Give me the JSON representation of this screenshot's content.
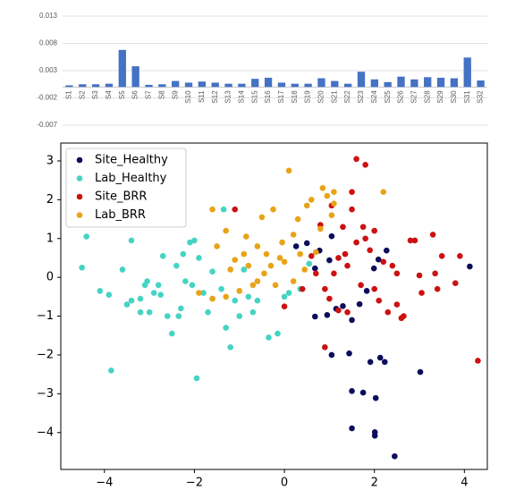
{
  "chart_data": [
    {
      "type": "bar",
      "color": "#4472c4",
      "grid": true,
      "categories": [
        "S1",
        "S2",
        "S3",
        "S4",
        "S5",
        "S6",
        "S7",
        "S8",
        "S9",
        "S10",
        "S11",
        "S12",
        "S13",
        "S14",
        "S15",
        "S16",
        "S17",
        "S18",
        "S19",
        "S20",
        "S21",
        "S22",
        "S23",
        "S24",
        "S25",
        "S26",
        "S27",
        "S28",
        "S29",
        "S30",
        "S31",
        "S32"
      ],
      "values": [
        0.0003,
        0.0005,
        0.0005,
        0.0006,
        0.0068,
        0.0038,
        0.0004,
        0.0005,
        0.0011,
        0.0008,
        0.001,
        0.0008,
        0.0006,
        0.0006,
        0.0015,
        0.0017,
        0.0008,
        0.0006,
        0.0006,
        0.0016,
        0.0011,
        0.0006,
        0.0028,
        0.0014,
        0.0009,
        0.0019,
        0.0014,
        0.0018,
        0.0017,
        0.0016,
        0.0054,
        0.0012
      ],
      "ylim": [
        -0.007,
        0.013
      ],
      "yticks": [
        -0.007,
        -0.002,
        0.003,
        0.008,
        0.013
      ]
    },
    {
      "type": "scatter",
      "legend": "upper left",
      "xlim": [
        -4.97,
        4.51
      ],
      "ylim": [
        -4.95,
        3.46
      ],
      "xticks": [
        {
          "value": -4,
          "label": "−4"
        },
        {
          "value": -2,
          "label": "−2"
        },
        0,
        2,
        4
      ],
      "yticks": [
        3,
        2,
        1,
        0,
        {
          "value": -1,
          "label": "−1"
        },
        {
          "value": -2,
          "label": "−2"
        },
        {
          "value": -3,
          "label": "−3"
        },
        {
          "value": -4,
          "label": "−4"
        }
      ],
      "series": [
        {
          "name": "Site_Healthy",
          "color": "#0c0c5c",
          "x": [
            0.26,
            0.5,
            0.68,
            0.68,
            0.95,
            1.05,
            1.0,
            1.15,
            1.3,
            1.05,
            1.5,
            1.67,
            1.83,
            2.27,
            2.09,
            1.99,
            1.5,
            1.75,
            2.03,
            1.91,
            2.13,
            2.23,
            1.5,
            2.01,
            2.01,
            2.45,
            3.02,
            4.12,
            1.44,
            0.78
          ],
          "y": [
            0.8,
            0.88,
            0.23,
            -1.01,
            -0.97,
            1.06,
            0.44,
            -0.81,
            -0.74,
            -2.0,
            -1.1,
            -0.69,
            -0.35,
            0.69,
            0.46,
            0.23,
            -2.93,
            -2.97,
            -3.11,
            -2.18,
            -2.07,
            -2.18,
            -3.89,
            -3.99,
            -4.08,
            -4.61,
            -2.44,
            0.28,
            -1.96,
            0.69
          ]
        },
        {
          "name": "Lab_Healthy",
          "color": "#45d3c3",
          "x": [
            -4.5,
            -4.4,
            -4.1,
            -3.9,
            -3.85,
            -3.6,
            -3.5,
            -3.4,
            -3.4,
            -3.2,
            -3.1,
            -3.2,
            -3.0,
            -3.05,
            -2.9,
            -2.8,
            -2.75,
            -2.6,
            -2.7,
            -2.5,
            -2.4,
            -2.3,
            -2.35,
            -2.25,
            -2.1,
            -2.0,
            -2.05,
            -1.95,
            -2.2,
            -1.8,
            -1.7,
            -1.6,
            -1.4,
            -1.3,
            -1.2,
            -1.1,
            -1.0,
            -0.9,
            -0.8,
            -0.7,
            -0.6,
            -0.35,
            -0.15,
            0.0,
            0.1,
            0.35,
            0.55,
            -1.35,
            -1.6,
            -1.9
          ],
          "y": [
            0.25,
            1.05,
            -0.35,
            -0.45,
            -2.4,
            0.2,
            -0.7,
            -0.6,
            0.95,
            -0.9,
            -0.2,
            -0.55,
            -0.9,
            -0.1,
            -0.4,
            -0.2,
            -0.45,
            -1.0,
            0.55,
            -1.45,
            0.3,
            -0.8,
            -1.0,
            0.6,
            0.9,
            0.95,
            -0.2,
            -2.6,
            -0.1,
            -0.4,
            -0.9,
            -0.55,
            -0.3,
            -1.3,
            -1.8,
            -0.6,
            -1.0,
            0.2,
            -0.5,
            -0.9,
            -0.6,
            -1.55,
            -1.45,
            -0.5,
            -0.4,
            -0.3,
            0.35,
            1.75,
            0.15,
            0.5
          ]
        },
        {
          "name": "Site_BRR",
          "color": "#cc1111",
          "x": [
            -1.1,
            0.0,
            0.4,
            0.6,
            0.7,
            0.8,
            0.9,
            0.9,
            1.0,
            1.05,
            1.1,
            1.2,
            1.2,
            1.3,
            1.4,
            1.4,
            1.5,
            1.5,
            1.6,
            1.6,
            1.7,
            1.75,
            1.8,
            1.8,
            1.9,
            2.0,
            2.0,
            2.1,
            2.2,
            2.3,
            2.4,
            2.5,
            2.5,
            2.65,
            2.8,
            2.9,
            3.0,
            3.05,
            3.3,
            3.35,
            3.4,
            3.5,
            3.8,
            3.9,
            4.3,
            2.6,
            1.35
          ],
          "y": [
            1.75,
            -0.75,
            -0.3,
            0.55,
            0.1,
            1.35,
            -0.3,
            -1.8,
            -0.55,
            1.85,
            0.1,
            0.5,
            -0.85,
            1.3,
            -0.9,
            0.3,
            1.75,
            2.2,
            0.9,
            3.05,
            -0.2,
            1.3,
            1.0,
            2.9,
            0.7,
            1.2,
            -0.3,
            -0.6,
            0.4,
            -0.9,
            0.3,
            0.1,
            -0.7,
            -1.0,
            0.95,
            0.95,
            0.05,
            -0.4,
            1.1,
            0.1,
            -0.3,
            0.55,
            -0.15,
            0.55,
            -2.15,
            -1.05,
            0.6
          ]
        },
        {
          "name": "Lab_BRR",
          "color": "#e8a317",
          "x": [
            -1.6,
            -1.3,
            -1.2,
            -1.1,
            -1.0,
            -0.9,
            -0.85,
            -0.8,
            -0.7,
            -0.6,
            -0.5,
            -0.45,
            -0.4,
            -0.3,
            -0.25,
            -0.2,
            -0.1,
            -0.05,
            0.0,
            0.1,
            0.2,
            0.3,
            0.35,
            0.45,
            0.6,
            0.7,
            0.8,
            0.85,
            0.95,
            1.05,
            1.1,
            1.1,
            0.5,
            -1.5,
            -1.9,
            -1.6,
            2.2,
            -0.6,
            -1.3,
            0.2
          ],
          "y": [
            1.75,
            1.2,
            0.2,
            0.45,
            -0.35,
            0.6,
            1.05,
            0.3,
            -0.2,
            0.8,
            1.55,
            0.1,
            0.6,
            0.3,
            1.75,
            -0.2,
            0.5,
            0.9,
            0.4,
            2.75,
            -0.1,
            1.5,
            0.6,
            0.2,
            2.0,
            0.65,
            1.25,
            2.3,
            2.1,
            1.6,
            1.9,
            2.2,
            1.85,
            0.8,
            -0.4,
            -0.55,
            2.2,
            -0.1,
            -0.5,
            1.1
          ]
        }
      ]
    }
  ]
}
